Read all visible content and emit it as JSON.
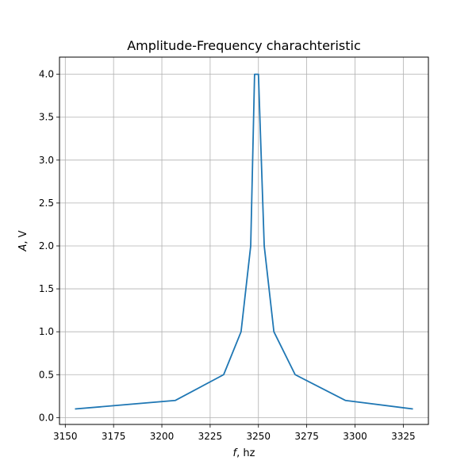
{
  "chart_data": {
    "type": "line",
    "title": "Amplitude-Frequency charachteristic",
    "xlabel": {
      "symbol": "f",
      "rest": ", hz"
    },
    "ylabel": {
      "symbol": "A",
      "rest": ", V"
    },
    "xlim": [
      3147.0,
      3338.0
    ],
    "ylim": [
      -0.08,
      4.2
    ],
    "xticks": [
      3150,
      3175,
      3200,
      3225,
      3250,
      3275,
      3300,
      3325
    ],
    "xtick_labels": [
      "3150",
      "3175",
      "3200",
      "3225",
      "3250",
      "3275",
      "3300",
      "3325"
    ],
    "yticks": [
      0.0,
      0.5,
      1.0,
      1.5,
      2.0,
      2.5,
      3.0,
      3.5,
      4.0
    ],
    "ytick_labels": [
      "0.0",
      "0.5",
      "1.0",
      "1.5",
      "2.0",
      "2.5",
      "3.0",
      "3.5",
      "4.0"
    ],
    "grid": true,
    "series": [
      {
        "color": "#1f77b4",
        "x": [
          3155,
          3207,
          3232,
          3241,
          3246,
          3248,
          3250,
          3253,
          3258,
          3269,
          3295,
          3330
        ],
        "y": [
          0.1,
          0.2,
          0.5,
          1.0,
          2.0,
          4.0,
          4.0,
          2.0,
          1.0,
          0.5,
          0.2,
          0.1
        ]
      }
    ]
  }
}
